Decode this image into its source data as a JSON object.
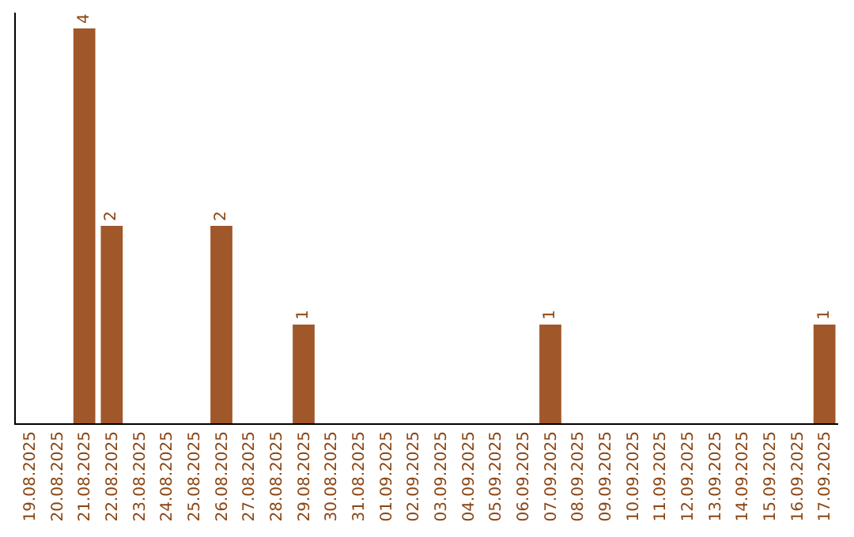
{
  "chart_data": {
    "type": "bar",
    "categories": [
      "19.08.2025",
      "20.08.2025",
      "21.08.2025",
      "22.08.2025",
      "23.08.2025",
      "24.08.2025",
      "25.08.2025",
      "26.08.2025",
      "27.08.2025",
      "28.08.2025",
      "29.08.2025",
      "30.08.2025",
      "31.08.2025",
      "01.09.2025",
      "02.09.2025",
      "03.09.2025",
      "04.09.2025",
      "05.09.2025",
      "06.09.2025",
      "07.09.2025",
      "08.09.2025",
      "09.09.2025",
      "10.09.2025",
      "11.09.2025",
      "12.09.2025",
      "13.09.2025",
      "14.09.2025",
      "15.09.2025",
      "16.09.2025",
      "17.09.2025"
    ],
    "values": [
      0,
      0,
      4,
      2,
      0,
      0,
      0,
      2,
      0,
      0,
      1,
      0,
      0,
      0,
      0,
      0,
      0,
      0,
      0,
      1,
      0,
      0,
      0,
      0,
      0,
      0,
      0,
      0,
      0,
      1
    ],
    "value_labels": [
      null,
      null,
      "4",
      "2",
      null,
      null,
      null,
      "2",
      null,
      null,
      "1",
      null,
      null,
      null,
      null,
      null,
      null,
      null,
      null,
      "1",
      null,
      null,
      null,
      null,
      null,
      null,
      null,
      null,
      null,
      "1"
    ],
    "color": "#a0572a",
    "grid": false,
    "legend": false
  }
}
